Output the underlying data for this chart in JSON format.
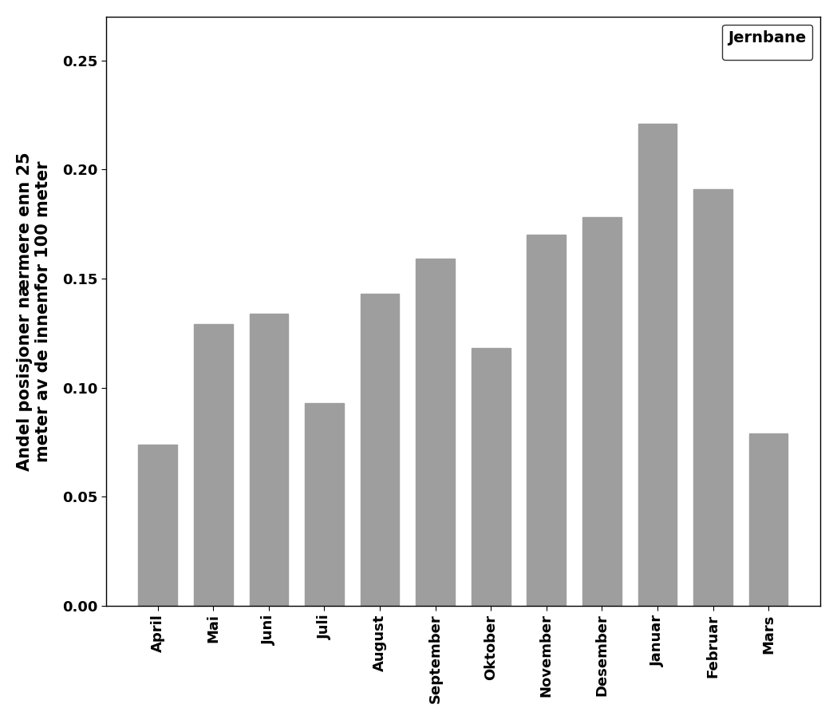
{
  "categories": [
    "April",
    "Mai",
    "Juni",
    "Juli",
    "August",
    "September",
    "Oktober",
    "November",
    "Desember",
    "Januar",
    "Februar",
    "Mars"
  ],
  "values": [
    0.074,
    0.129,
    0.134,
    0.093,
    0.143,
    0.159,
    0.118,
    0.17,
    0.178,
    0.221,
    0.191,
    0.079
  ],
  "bar_color": "#9e9e9e",
  "bar_edgecolor": "#9e9e9e",
  "ylabel": "Andel posisjoner nærmere enn 25\nmeter av de innenfor 100 meter",
  "ylim": [
    0.0,
    0.27
  ],
  "yticks": [
    0.0,
    0.05,
    0.1,
    0.15,
    0.2,
    0.25
  ],
  "legend_label": "Jernbane",
  "legend_fontsize": 14,
  "ylabel_fontsize": 15,
  "tick_fontsize": 13,
  "background_color": "#ffffff",
  "plot_background": "#ffffff"
}
